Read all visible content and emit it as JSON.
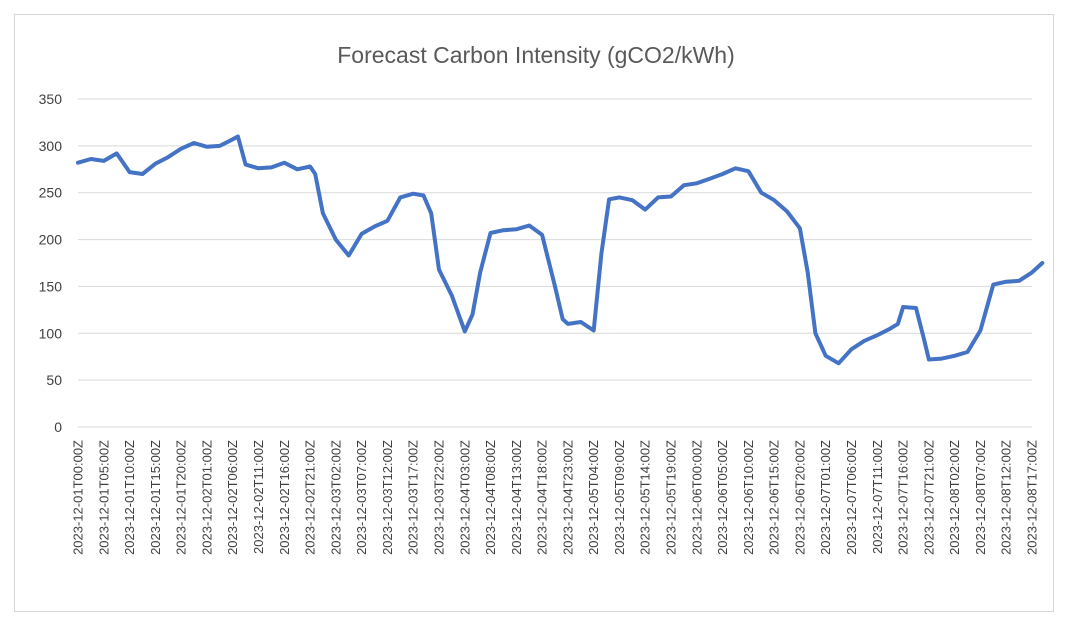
{
  "chart_data": {
    "type": "line",
    "title": "Forecast Carbon Intensity (gCO2/kWh)",
    "ylim": [
      0,
      350
    ],
    "yticks": [
      0,
      50,
      100,
      150,
      200,
      250,
      300,
      350
    ],
    "grid": true,
    "legend": "none",
    "colors": {
      "series": "#4472C4",
      "grid": "#d9d9d9",
      "text": "#404040",
      "title": "#595959"
    },
    "x_labels": [
      "2023-12-01T00:00Z",
      "2023-12-01T05:00Z",
      "2023-12-01T10:00Z",
      "2023-12-01T15:00Z",
      "2023-12-01T20:00Z",
      "2023-12-02T01:00Z",
      "2023-12-02T06:00Z",
      "2023-12-02T11:00Z",
      "2023-12-02T16:00Z",
      "2023-12-02T21:00Z",
      "2023-12-03T02:00Z",
      "2023-12-03T07:00Z",
      "2023-12-03T12:00Z",
      "2023-12-03T17:00Z",
      "2023-12-03T22:00Z",
      "2023-12-04T03:00Z",
      "2023-12-04T08:00Z",
      "2023-12-04T13:00Z",
      "2023-12-04T18:00Z",
      "2023-12-04T23:00Z",
      "2023-12-05T04:00Z",
      "2023-12-05T09:00Z",
      "2023-12-05T14:00Z",
      "2023-12-05T19:00Z",
      "2023-12-06T00:00Z",
      "2023-12-06T05:00Z",
      "2023-12-06T10:00Z",
      "2023-12-06T15:00Z",
      "2023-12-06T20:00Z",
      "2023-12-07T01:00Z",
      "2023-12-07T06:00Z",
      "2023-12-07T11:00Z",
      "2023-12-07T16:00Z",
      "2023-12-07T21:00Z",
      "2023-12-08T02:00Z",
      "2023-12-08T07:00Z",
      "2023-12-08T12:00Z",
      "2023-12-08T17:00Z"
    ],
    "series": [
      {
        "x": [
          "2023-12-01T00:00Z",
          "2023-12-01T02:30Z",
          "2023-12-01T05:00Z",
          "2023-12-01T07:30Z",
          "2023-12-01T10:00Z",
          "2023-12-01T12:30Z",
          "2023-12-01T15:00Z",
          "2023-12-01T17:30Z",
          "2023-12-01T20:00Z",
          "2023-12-01T22:30Z",
          "2023-12-02T01:00Z",
          "2023-12-02T03:30Z",
          "2023-12-02T06:00Z",
          "2023-12-02T07:00Z",
          "2023-12-02T08:30Z",
          "2023-12-02T11:00Z",
          "2023-12-02T13:30Z",
          "2023-12-02T16:00Z",
          "2023-12-02T18:30Z",
          "2023-12-02T21:00Z",
          "2023-12-02T22:00Z",
          "2023-12-02T23:30Z",
          "2023-12-03T02:00Z",
          "2023-12-03T04:30Z",
          "2023-12-03T07:00Z",
          "2023-12-03T09:30Z",
          "2023-12-03T12:00Z",
          "2023-12-03T14:30Z",
          "2023-12-03T17:00Z",
          "2023-12-03T19:00Z",
          "2023-12-03T20:30Z",
          "2023-12-03T22:00Z",
          "2023-12-04T00:30Z",
          "2023-12-04T03:00Z",
          "2023-12-04T04:30Z",
          "2023-12-04T06:00Z",
          "2023-12-04T08:00Z",
          "2023-12-04T10:30Z",
          "2023-12-04T13:00Z",
          "2023-12-04T15:30Z",
          "2023-12-04T17:00Z",
          "2023-12-04T18:00Z",
          "2023-12-04T20:30Z",
          "2023-12-04T22:00Z",
          "2023-12-04T23:00Z",
          "2023-12-05T01:30Z",
          "2023-12-05T04:00Z",
          "2023-12-05T05:30Z",
          "2023-12-05T07:00Z",
          "2023-12-05T09:00Z",
          "2023-12-05T11:30Z",
          "2023-12-05T14:00Z",
          "2023-12-05T16:30Z",
          "2023-12-05T19:00Z",
          "2023-12-05T21:30Z",
          "2023-12-06T00:00Z",
          "2023-12-06T02:30Z",
          "2023-12-06T05:00Z",
          "2023-12-06T07:30Z",
          "2023-12-06T10:00Z",
          "2023-12-06T12:30Z",
          "2023-12-06T15:00Z",
          "2023-12-06T17:30Z",
          "2023-12-06T20:00Z",
          "2023-12-06T21:30Z",
          "2023-12-06T23:00Z",
          "2023-12-07T01:00Z",
          "2023-12-07T03:30Z",
          "2023-12-07T06:00Z",
          "2023-12-07T08:30Z",
          "2023-12-07T11:00Z",
          "2023-12-07T13:30Z",
          "2023-12-07T15:00Z",
          "2023-12-07T16:00Z",
          "2023-12-07T18:30Z",
          "2023-12-07T20:00Z",
          "2023-12-07T21:00Z",
          "2023-12-07T23:30Z",
          "2023-12-08T02:00Z",
          "2023-12-08T04:30Z",
          "2023-12-08T07:00Z",
          "2023-12-08T09:30Z",
          "2023-12-08T12:00Z",
          "2023-12-08T14:30Z",
          "2023-12-08T17:00Z",
          "2023-12-08T19:00Z"
        ],
        "values": [
          282,
          286,
          284,
          292,
          272,
          270,
          281,
          288,
          297,
          303,
          299,
          300,
          307,
          310,
          280,
          276,
          277,
          282,
          275,
          278,
          270,
          228,
          200,
          183,
          206,
          214,
          220,
          245,
          249,
          247,
          228,
          168,
          140,
          102,
          120,
          165,
          207,
          210,
          211,
          215,
          209,
          205,
          150,
          115,
          110,
          112,
          103,
          185,
          243,
          245,
          242,
          232,
          245,
          246,
          258,
          260,
          265,
          270,
          276,
          273,
          250,
          242,
          230,
          212,
          165,
          100,
          76,
          68,
          83,
          92,
          98,
          105,
          110,
          128,
          127,
          95,
          72,
          73,
          76,
          80,
          103,
          152,
          155,
          156,
          165,
          175
        ]
      }
    ]
  }
}
